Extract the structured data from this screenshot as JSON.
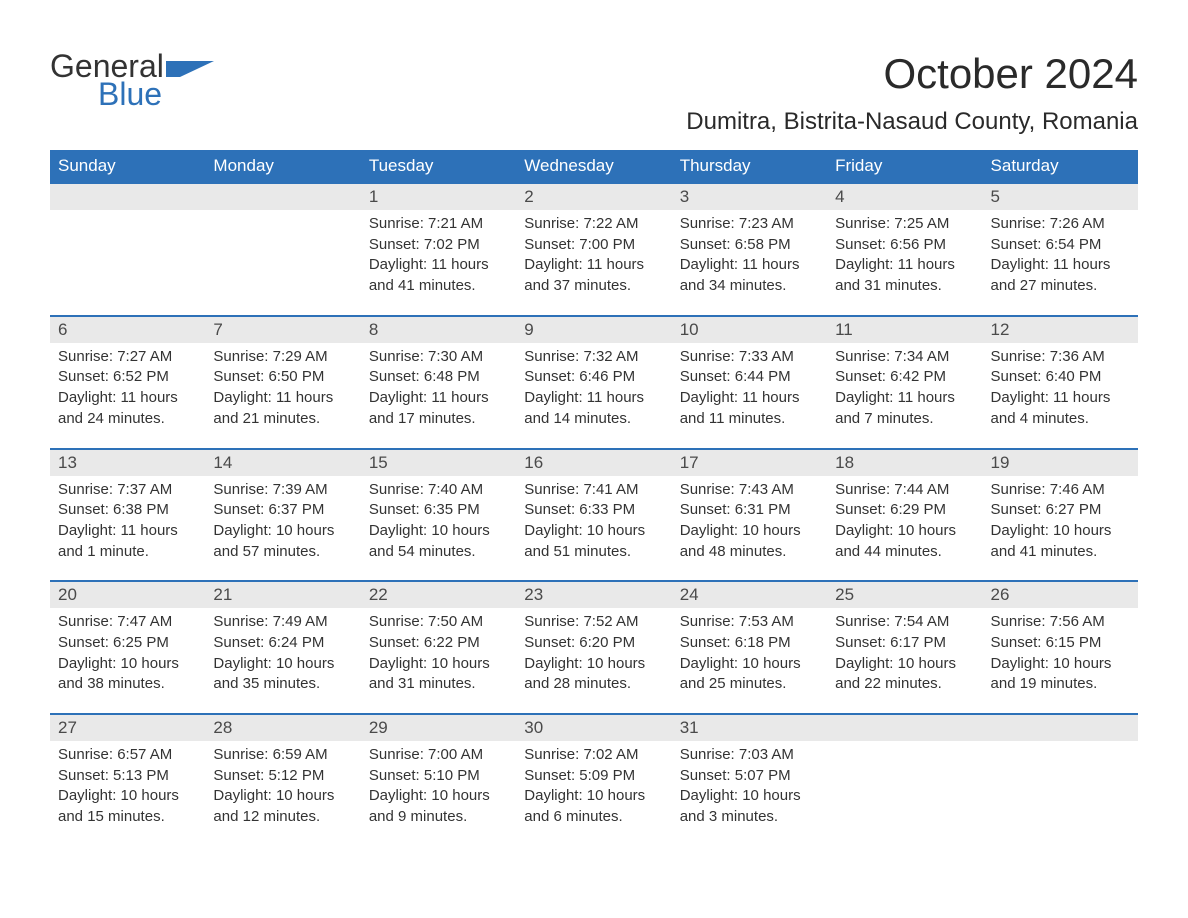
{
  "brand": {
    "word1": "General",
    "word2": "Blue"
  },
  "title": "October 2024",
  "location": "Dumitra, Bistrita-Nasaud County, Romania",
  "colors": {
    "header_bg": "#2d71b8",
    "header_fg": "#ffffff",
    "daynum_bg": "#e9e9e9",
    "text": "#333333",
    "brand_blue": "#2d71b8",
    "page_bg": "#ffffff"
  },
  "typography": {
    "title_fontsize": 42,
    "location_fontsize": 24,
    "dow_fontsize": 17,
    "daynum_fontsize": 17,
    "body_fontsize": 15
  },
  "days_of_week": [
    "Sunday",
    "Monday",
    "Tuesday",
    "Wednesday",
    "Thursday",
    "Friday",
    "Saturday"
  ],
  "weeks": [
    [
      null,
      null,
      {
        "n": "1",
        "sunrise": "Sunrise: 7:21 AM",
        "sunset": "Sunset: 7:02 PM",
        "day1": "Daylight: 11 hours",
        "day2": "and 41 minutes."
      },
      {
        "n": "2",
        "sunrise": "Sunrise: 7:22 AM",
        "sunset": "Sunset: 7:00 PM",
        "day1": "Daylight: 11 hours",
        "day2": "and 37 minutes."
      },
      {
        "n": "3",
        "sunrise": "Sunrise: 7:23 AM",
        "sunset": "Sunset: 6:58 PM",
        "day1": "Daylight: 11 hours",
        "day2": "and 34 minutes."
      },
      {
        "n": "4",
        "sunrise": "Sunrise: 7:25 AM",
        "sunset": "Sunset: 6:56 PM",
        "day1": "Daylight: 11 hours",
        "day2": "and 31 minutes."
      },
      {
        "n": "5",
        "sunrise": "Sunrise: 7:26 AM",
        "sunset": "Sunset: 6:54 PM",
        "day1": "Daylight: 11 hours",
        "day2": "and 27 minutes."
      }
    ],
    [
      {
        "n": "6",
        "sunrise": "Sunrise: 7:27 AM",
        "sunset": "Sunset: 6:52 PM",
        "day1": "Daylight: 11 hours",
        "day2": "and 24 minutes."
      },
      {
        "n": "7",
        "sunrise": "Sunrise: 7:29 AM",
        "sunset": "Sunset: 6:50 PM",
        "day1": "Daylight: 11 hours",
        "day2": "and 21 minutes."
      },
      {
        "n": "8",
        "sunrise": "Sunrise: 7:30 AM",
        "sunset": "Sunset: 6:48 PM",
        "day1": "Daylight: 11 hours",
        "day2": "and 17 minutes."
      },
      {
        "n": "9",
        "sunrise": "Sunrise: 7:32 AM",
        "sunset": "Sunset: 6:46 PM",
        "day1": "Daylight: 11 hours",
        "day2": "and 14 minutes."
      },
      {
        "n": "10",
        "sunrise": "Sunrise: 7:33 AM",
        "sunset": "Sunset: 6:44 PM",
        "day1": "Daylight: 11 hours",
        "day2": "and 11 minutes."
      },
      {
        "n": "11",
        "sunrise": "Sunrise: 7:34 AM",
        "sunset": "Sunset: 6:42 PM",
        "day1": "Daylight: 11 hours",
        "day2": "and 7 minutes."
      },
      {
        "n": "12",
        "sunrise": "Sunrise: 7:36 AM",
        "sunset": "Sunset: 6:40 PM",
        "day1": "Daylight: 11 hours",
        "day2": "and 4 minutes."
      }
    ],
    [
      {
        "n": "13",
        "sunrise": "Sunrise: 7:37 AM",
        "sunset": "Sunset: 6:38 PM",
        "day1": "Daylight: 11 hours",
        "day2": "and 1 minute."
      },
      {
        "n": "14",
        "sunrise": "Sunrise: 7:39 AM",
        "sunset": "Sunset: 6:37 PM",
        "day1": "Daylight: 10 hours",
        "day2": "and 57 minutes."
      },
      {
        "n": "15",
        "sunrise": "Sunrise: 7:40 AM",
        "sunset": "Sunset: 6:35 PM",
        "day1": "Daylight: 10 hours",
        "day2": "and 54 minutes."
      },
      {
        "n": "16",
        "sunrise": "Sunrise: 7:41 AM",
        "sunset": "Sunset: 6:33 PM",
        "day1": "Daylight: 10 hours",
        "day2": "and 51 minutes."
      },
      {
        "n": "17",
        "sunrise": "Sunrise: 7:43 AM",
        "sunset": "Sunset: 6:31 PM",
        "day1": "Daylight: 10 hours",
        "day2": "and 48 minutes."
      },
      {
        "n": "18",
        "sunrise": "Sunrise: 7:44 AM",
        "sunset": "Sunset: 6:29 PM",
        "day1": "Daylight: 10 hours",
        "day2": "and 44 minutes."
      },
      {
        "n": "19",
        "sunrise": "Sunrise: 7:46 AM",
        "sunset": "Sunset: 6:27 PM",
        "day1": "Daylight: 10 hours",
        "day2": "and 41 minutes."
      }
    ],
    [
      {
        "n": "20",
        "sunrise": "Sunrise: 7:47 AM",
        "sunset": "Sunset: 6:25 PM",
        "day1": "Daylight: 10 hours",
        "day2": "and 38 minutes."
      },
      {
        "n": "21",
        "sunrise": "Sunrise: 7:49 AM",
        "sunset": "Sunset: 6:24 PM",
        "day1": "Daylight: 10 hours",
        "day2": "and 35 minutes."
      },
      {
        "n": "22",
        "sunrise": "Sunrise: 7:50 AM",
        "sunset": "Sunset: 6:22 PM",
        "day1": "Daylight: 10 hours",
        "day2": "and 31 minutes."
      },
      {
        "n": "23",
        "sunrise": "Sunrise: 7:52 AM",
        "sunset": "Sunset: 6:20 PM",
        "day1": "Daylight: 10 hours",
        "day2": "and 28 minutes."
      },
      {
        "n": "24",
        "sunrise": "Sunrise: 7:53 AM",
        "sunset": "Sunset: 6:18 PM",
        "day1": "Daylight: 10 hours",
        "day2": "and 25 minutes."
      },
      {
        "n": "25",
        "sunrise": "Sunrise: 7:54 AM",
        "sunset": "Sunset: 6:17 PM",
        "day1": "Daylight: 10 hours",
        "day2": "and 22 minutes."
      },
      {
        "n": "26",
        "sunrise": "Sunrise: 7:56 AM",
        "sunset": "Sunset: 6:15 PM",
        "day1": "Daylight: 10 hours",
        "day2": "and 19 minutes."
      }
    ],
    [
      {
        "n": "27",
        "sunrise": "Sunrise: 6:57 AM",
        "sunset": "Sunset: 5:13 PM",
        "day1": "Daylight: 10 hours",
        "day2": "and 15 minutes."
      },
      {
        "n": "28",
        "sunrise": "Sunrise: 6:59 AM",
        "sunset": "Sunset: 5:12 PM",
        "day1": "Daylight: 10 hours",
        "day2": "and 12 minutes."
      },
      {
        "n": "29",
        "sunrise": "Sunrise: 7:00 AM",
        "sunset": "Sunset: 5:10 PM",
        "day1": "Daylight: 10 hours",
        "day2": "and 9 minutes."
      },
      {
        "n": "30",
        "sunrise": "Sunrise: 7:02 AM",
        "sunset": "Sunset: 5:09 PM",
        "day1": "Daylight: 10 hours",
        "day2": "and 6 minutes."
      },
      {
        "n": "31",
        "sunrise": "Sunrise: 7:03 AM",
        "sunset": "Sunset: 5:07 PM",
        "day1": "Daylight: 10 hours",
        "day2": "and 3 minutes."
      },
      null,
      null
    ]
  ]
}
